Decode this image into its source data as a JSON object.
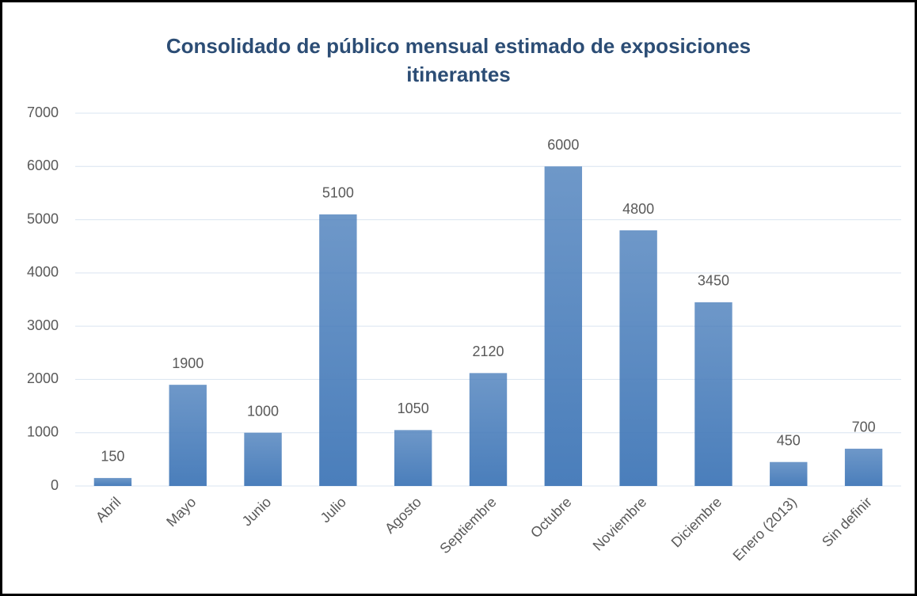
{
  "chart_data": {
    "type": "bar",
    "title": "Consolidado de público mensual estimado de exposiciones itinerantes",
    "categories": [
      "Abril",
      "Mayo",
      "Junio",
      "Julio",
      "Agosto",
      "Septiembre",
      "Octubre",
      "Noviembre",
      "Diciembre",
      "Enero (2013)",
      "Sin definir"
    ],
    "values": [
      150,
      1900,
      1000,
      5100,
      1050,
      2120,
      6000,
      4800,
      3450,
      450,
      700
    ],
    "color": "#4a7ebb",
    "ylim": [
      0,
      7000
    ],
    "yticks": [
      0,
      1000,
      2000,
      3000,
      4000,
      5000,
      6000,
      7000
    ],
    "grid": true
  }
}
